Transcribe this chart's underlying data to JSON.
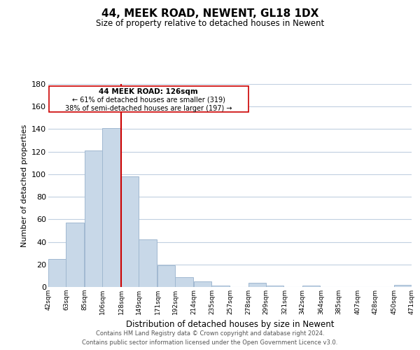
{
  "title": "44, MEEK ROAD, NEWENT, GL18 1DX",
  "subtitle": "Size of property relative to detached houses in Newent",
  "xlabel": "Distribution of detached houses by size in Newent",
  "ylabel": "Number of detached properties",
  "bar_color": "#c8d8e8",
  "bar_edge_color": "#a0b8d0",
  "vline_x": 128,
  "vline_color": "#cc0000",
  "annotation_title": "44 MEEK ROAD: 126sqm",
  "annotation_line1": "← 61% of detached houses are smaller (319)",
  "annotation_line2": "38% of semi-detached houses are larger (197) →",
  "annotation_box_edge": "#cc0000",
  "bins_left": [
    42,
    63,
    85,
    106,
    128,
    149,
    171,
    192,
    214,
    235,
    257,
    278,
    299,
    321,
    342,
    364,
    385,
    407,
    428,
    450
  ],
  "bin_width": 21,
  "heights": [
    25,
    57,
    121,
    141,
    98,
    42,
    19,
    9,
    5,
    1,
    0,
    4,
    1,
    0,
    1,
    0,
    0,
    0,
    0,
    2
  ],
  "xtick_labels": [
    "42sqm",
    "63sqm",
    "85sqm",
    "106sqm",
    "128sqm",
    "149sqm",
    "171sqm",
    "192sqm",
    "214sqm",
    "235sqm",
    "257sqm",
    "278sqm",
    "299sqm",
    "321sqm",
    "342sqm",
    "364sqm",
    "385sqm",
    "407sqm",
    "428sqm",
    "450sqm",
    "471sqm"
  ],
  "ylim": [
    0,
    180
  ],
  "yticks": [
    0,
    20,
    40,
    60,
    80,
    100,
    120,
    140,
    160,
    180
  ],
  "footer1": "Contains HM Land Registry data © Crown copyright and database right 2024.",
  "footer2": "Contains public sector information licensed under the Open Government Licence v3.0.",
  "background_color": "#ffffff",
  "grid_color": "#c0cfe0"
}
